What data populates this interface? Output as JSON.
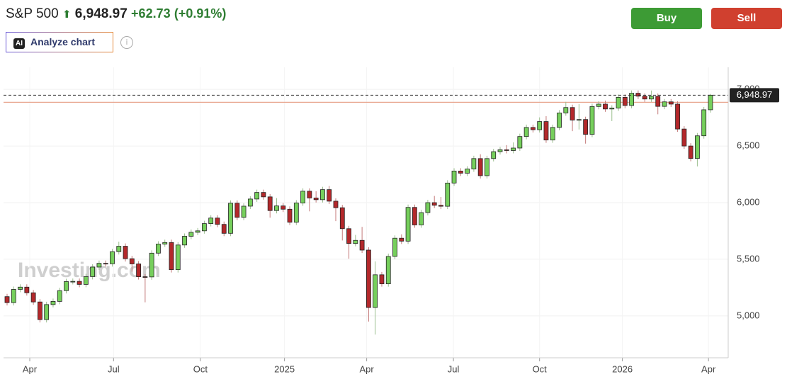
{
  "header": {
    "symbol": "S&P 500",
    "price": "6,948.97",
    "change": "+62.73",
    "change_pct": "(+0.91%)",
    "analyze": "Analyze chart",
    "ai_badge": "AI",
    "buy": "Buy",
    "sell": "Sell"
  },
  "chart_data": {
    "type": "candlestick",
    "watermark": "Investing.com",
    "categories": [
      null,
      null,
      null,
      null,
      null,
      null,
      null,
      null,
      null,
      null,
      null,
      null,
      null,
      null,
      null,
      null,
      null,
      null,
      null,
      null,
      null,
      null,
      null,
      null,
      null,
      null,
      null,
      null,
      null,
      null,
      null,
      null,
      null,
      null,
      null,
      null,
      null,
      null,
      null,
      null,
      null,
      null,
      null,
      null,
      null,
      null,
      null,
      null,
      null,
      null,
      null,
      null,
      null,
      null,
      null,
      null,
      null,
      null,
      null,
      null,
      null,
      null,
      null,
      null,
      null,
      null,
      null,
      null,
      null,
      null,
      null,
      null,
      null,
      null,
      null,
      null,
      null,
      null,
      null,
      null,
      null,
      null,
      null,
      null,
      null,
      null,
      null,
      null,
      null,
      null,
      null,
      null,
      null,
      null,
      null,
      null,
      null,
      null,
      null,
      null,
      null,
      null,
      null,
      null,
      null,
      null,
      null,
      null
    ],
    "open": [
      5170,
      5117,
      5234,
      5254,
      5204,
      5123,
      4967,
      5100,
      5128,
      5223,
      5303,
      5305,
      5278,
      5347,
      5431,
      5464,
      5460,
      5567,
      5615,
      5505,
      5459,
      5346,
      5344,
      5554,
      5634,
      5648,
      5408,
      5626,
      5703,
      5738,
      5751,
      5815,
      5864,
      5808,
      5729,
      5995,
      5870,
      5969,
      6032,
      6090,
      6051,
      5930,
      5971,
      5942,
      5827,
      5997,
      6101,
      6041,
      6026,
      6115,
      6013,
      5955,
      5770,
      5639,
      5667,
      5581,
      5074,
      5363,
      5283,
      5525,
      5686,
      5660,
      5958,
      5803,
      5912,
      6000,
      5977,
      5968,
      6173,
      6279,
      6260,
      6297,
      6389,
      6238,
      6389,
      6450,
      6467,
      6460,
      6482,
      6584,
      6664,
      6644,
      6716,
      6553,
      6664,
      6792,
      6840,
      6729,
      6734,
      6603,
      6849,
      6870,
      6827,
      6835,
      6930,
      6858,
      6966,
      6940,
      6915,
      6939,
      6850,
      6890,
      6870,
      6650,
      6500,
      6390,
      6590,
      6820
    ],
    "high": [
      5195,
      5259,
      5279,
      5279,
      5229,
      5148,
      5125,
      5153,
      5248,
      5328,
      5330,
      5330,
      5372,
      5456,
      5489,
      5489,
      5592,
      5655,
      5640,
      5530,
      5484,
      5369,
      5579,
      5659,
      5673,
      5673,
      5651,
      5728,
      5763,
      5776,
      5840,
      5889,
      5889,
      5833,
      6020,
      6020,
      5994,
      6057,
      6115,
      6115,
      6076,
      6040,
      5996,
      5967,
      6022,
      6126,
      6126,
      6101,
      6140,
      6147,
      6038,
      5980,
      5795,
      5715,
      5786,
      5606,
      5481,
      5388,
      5550,
      5711,
      5720,
      5983,
      5983,
      5937,
      6025,
      6059,
      6050,
      6198,
      6304,
      6304,
      6322,
      6414,
      6427,
      6414,
      6475,
      6492,
      6508,
      6532,
      6609,
      6689,
      6689,
      6753,
      6764,
      6689,
      6817,
      6890,
      6865,
      6870,
      6759,
      6874,
      6895,
      6901,
      6860,
      6955,
      6955,
      6991,
      6991,
      6965,
      6990,
      6964,
      6915,
      6915,
      6895,
      6675,
      6525,
      6615,
      6845,
      6960
    ],
    "low": [
      5092,
      5092,
      5209,
      5179,
      5098,
      4942,
      4942,
      5075,
      5103,
      5198,
      5278,
      5253,
      5253,
      5322,
      5406,
      5435,
      5435,
      5542,
      5480,
      5390,
      5321,
      5120,
      5319,
      5529,
      5609,
      5383,
      5383,
      5601,
      5678,
      5713,
      5726,
      5790,
      5783,
      5704,
      5704,
      5845,
      5845,
      5944,
      6007,
      6026,
      5867,
      5905,
      5917,
      5802,
      5802,
      5972,
      5923,
      6001,
      6001,
      5988,
      5837,
      5666,
      5505,
      5614,
      5556,
      4950,
      4835,
      5258,
      5258,
      5500,
      5635,
      5635,
      5778,
      5778,
      5887,
      5952,
      5943,
      5943,
      6148,
      6235,
      6235,
      6272,
      6213,
      6213,
      6364,
      6425,
      6435,
      6435,
      6457,
      6559,
      6619,
      6619,
      6528,
      6528,
      6639,
      6767,
      6631,
      6646,
      6521,
      6578,
      6824,
      6802,
      6720,
      6810,
      6833,
      6833,
      6915,
      6890,
      6890,
      6780,
      6825,
      6845,
      6625,
      6475,
      6365,
      6320,
      6565,
      6795
    ],
    "close": [
      5117,
      5234,
      5254,
      5204,
      5123,
      4967,
      5100,
      5128,
      5223,
      5303,
      5305,
      5278,
      5347,
      5431,
      5464,
      5460,
      5567,
      5615,
      5505,
      5459,
      5346,
      5344,
      5554,
      5634,
      5648,
      5408,
      5626,
      5703,
      5738,
      5751,
      5815,
      5864,
      5808,
      5729,
      5995,
      5870,
      5969,
      6032,
      6090,
      6051,
      5930,
      5971,
      5942,
      5827,
      5997,
      6101,
      6041,
      6026,
      6115,
      6013,
      5955,
      5770,
      5639,
      5667,
      5581,
      5074,
      5363,
      5283,
      5525,
      5686,
      5660,
      5958,
      5803,
      5912,
      6000,
      5977,
      5968,
      6173,
      6279,
      6260,
      6297,
      6389,
      6238,
      6389,
      6450,
      6467,
      6460,
      6482,
      6584,
      6664,
      6644,
      6716,
      6553,
      6664,
      6792,
      6840,
      6729,
      6734,
      6603,
      6849,
      6870,
      6827,
      6835,
      6930,
      6858,
      6966,
      6940,
      6915,
      6939,
      6850,
      6890,
      6870,
      6650,
      6500,
      6390,
      6590,
      6820,
      6948.97
    ],
    "up_color": "#76cf5c",
    "down_color": "#b3282b",
    "last_price": 6948.97,
    "last_price_label": "6,948.97",
    "reference_line": 6886.24,
    "ylim": [
      4630,
      7195
    ],
    "yticks": [
      {
        "value": 5000,
        "label": "5,000"
      },
      {
        "value": 5500,
        "label": "5,500"
      },
      {
        "value": 6000,
        "label": "6,000"
      },
      {
        "value": 6500,
        "label": "6,500"
      },
      {
        "value": 7000,
        "label": "7,000"
      }
    ],
    "xticks": [
      {
        "value": 3.45,
        "label": "Apr"
      },
      {
        "value": 16.2,
        "label": "Jul"
      },
      {
        "value": 29.4,
        "label": "Oct"
      },
      {
        "value": 42.2,
        "label": "2025"
      },
      {
        "value": 54.7,
        "label": "Apr"
      },
      {
        "value": 67.9,
        "label": "Jul"
      },
      {
        "value": 81,
        "label": "Oct"
      },
      {
        "value": 93.6,
        "label": "2026"
      },
      {
        "value": 106.7,
        "label": "Apr"
      }
    ],
    "grid": true
  }
}
